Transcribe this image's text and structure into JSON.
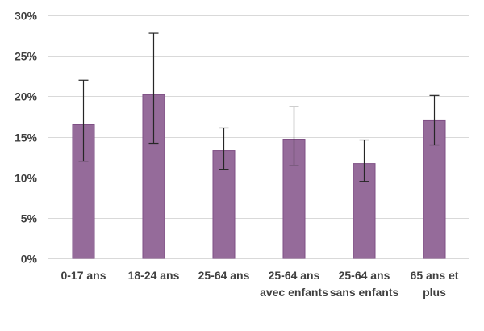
{
  "chart_data": {
    "type": "bar",
    "categories": [
      [
        "0-17 ans"
      ],
      [
        "18-24 ans"
      ],
      [
        "25-64 ans"
      ],
      [
        "25-64 ans",
        "avec enfants"
      ],
      [
        "25-64 ans",
        "sans enfants"
      ],
      [
        "65 ans et",
        "plus"
      ]
    ],
    "values": [
      16.5,
      20.2,
      13.3,
      14.7,
      11.7,
      17.0
    ],
    "error_low": [
      12.0,
      14.2,
      11.0,
      11.5,
      9.5,
      14.0
    ],
    "error_high": [
      22.0,
      27.8,
      16.1,
      18.7,
      14.6,
      20.1
    ],
    "ylim": [
      0,
      30
    ],
    "yticks": [
      0,
      5,
      10,
      15,
      20,
      25,
      30
    ],
    "ytick_labels": [
      "0%",
      "5%",
      "10%",
      "15%",
      "20%",
      "25%",
      "30%"
    ],
    "grid": true,
    "title": "",
    "xlabel": "",
    "ylabel": "",
    "colors": {
      "bar_fill": "#956b9a",
      "bar_stroke": "#7e4f84",
      "error_bar": "#262626",
      "grid": "#d9d9d9",
      "text": "#404040"
    }
  }
}
